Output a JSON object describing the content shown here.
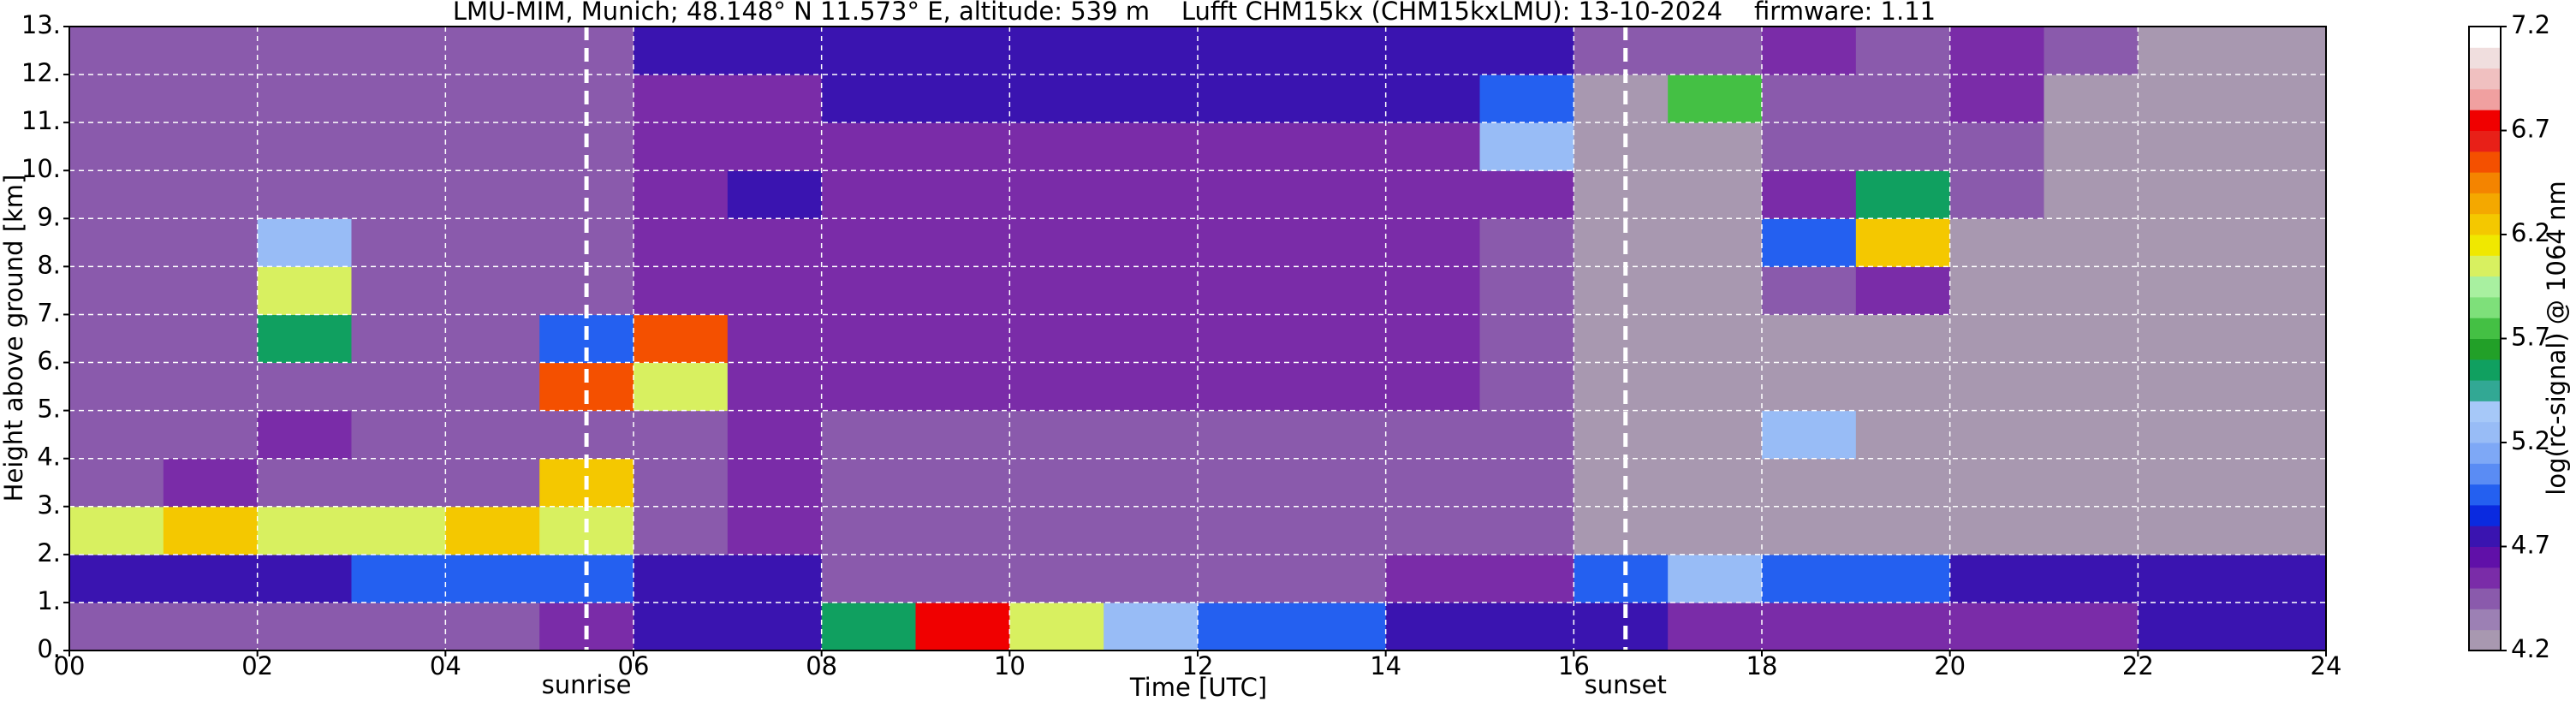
{
  "chart_data": {
    "type": "heatmap",
    "title": "LMU-MIM, Munich; 48.148° N 11.573° E, altitude: 539 m    Lufft CHM15kx (CHM15kxLMU): 13-10-2024    firmware: 1.11",
    "x_label": "Time [UTC]",
    "y_label": "Height above ground [km]",
    "xlim": [
      0,
      24
    ],
    "ylim": [
      0,
      13
    ],
    "xticks": [
      {
        "value": 0,
        "label": "00"
      },
      {
        "value": 2,
        "label": "02"
      },
      {
        "value": 4,
        "label": "04"
      },
      {
        "value": 6,
        "label": "06"
      },
      {
        "value": 8,
        "label": "08"
      },
      {
        "value": 10,
        "label": "10"
      },
      {
        "value": 12,
        "label": "12"
      },
      {
        "value": 14,
        "label": "14"
      },
      {
        "value": 16,
        "label": "16"
      },
      {
        "value": 18,
        "label": "18"
      },
      {
        "value": 20,
        "label": "20"
      },
      {
        "value": 22,
        "label": "22"
      },
      {
        "value": 24,
        "label": "24"
      }
    ],
    "yticks": [
      {
        "value": 0,
        "label": "0."
      },
      {
        "value": 1,
        "label": "1."
      },
      {
        "value": 2,
        "label": "2."
      },
      {
        "value": 3,
        "label": "3."
      },
      {
        "value": 4,
        "label": "4."
      },
      {
        "value": 5,
        "label": "5."
      },
      {
        "value": 6,
        "label": "6."
      },
      {
        "value": 7,
        "label": "7."
      },
      {
        "value": 8,
        "label": "8."
      },
      {
        "value": 9,
        "label": "9."
      },
      {
        "value": 10,
        "label": "10."
      },
      {
        "value": 11,
        "label": "11."
      },
      {
        "value": 12,
        "label": "12."
      },
      {
        "value": 13,
        "label": "13."
      }
    ],
    "grid": true,
    "z": [
      [
        4.5,
        4.5,
        4.5,
        4.5,
        4.5,
        4.6,
        4.7,
        4.8,
        5.6,
        6.8,
        6.0,
        5.2,
        5.0,
        4.9,
        4.8,
        4.7,
        4.7,
        4.6,
        4.6,
        4.6,
        4.6,
        4.6,
        4.7,
        4.7
      ],
      [
        4.8,
        4.8,
        4.8,
        4.9,
        5.0,
        4.9,
        4.7,
        4.8,
        4.5,
        4.4,
        4.4,
        4.5,
        4.5,
        4.5,
        4.6,
        4.6,
        5.0,
        5.2,
        5.0,
        4.9,
        4.8,
        4.7,
        4.7,
        4.7
      ],
      [
        6.0,
        6.2,
        6.0,
        6.0,
        6.2,
        6.0,
        4.5,
        4.6,
        4.4,
        4.4,
        4.4,
        4.4,
        4.4,
        4.4,
        4.4,
        4.4,
        4.3,
        4.3,
        4.3,
        4.3,
        4.3,
        4.3,
        4.3,
        4.3
      ],
      [
        4.4,
        4.6,
        4.4,
        4.5,
        4.5,
        6.2,
        4.5,
        4.6,
        4.5,
        4.5,
        4.5,
        4.5,
        4.5,
        4.5,
        4.5,
        4.5,
        4.3,
        4.3,
        4.3,
        4.3,
        4.3,
        4.3,
        4.3,
        4.3
      ],
      [
        4.4,
        4.4,
        4.6,
        4.4,
        4.4,
        4.4,
        4.5,
        4.6,
        4.5,
        4.5,
        4.5,
        4.5,
        4.5,
        4.5,
        4.5,
        4.5,
        4.3,
        4.3,
        5.2,
        4.3,
        4.3,
        4.3,
        4.3,
        4.3
      ],
      [
        4.4,
        4.4,
        4.4,
        4.4,
        4.4,
        6.5,
        6.0,
        4.6,
        4.6,
        4.6,
        4.6,
        4.6,
        4.6,
        4.6,
        4.6,
        4.5,
        4.3,
        4.3,
        4.3,
        4.3,
        4.3,
        4.3,
        4.3,
        4.3
      ],
      [
        4.4,
        4.4,
        5.6,
        4.4,
        4.4,
        5.0,
        6.5,
        4.6,
        4.6,
        4.6,
        4.6,
        4.6,
        4.6,
        4.6,
        4.6,
        4.5,
        4.3,
        4.3,
        4.3,
        4.3,
        4.3,
        4.3,
        4.3,
        4.3
      ],
      [
        4.4,
        4.4,
        6.0,
        4.4,
        4.4,
        4.4,
        4.6,
        4.6,
        4.6,
        4.6,
        4.6,
        4.6,
        4.6,
        4.6,
        4.6,
        4.5,
        4.3,
        4.3,
        4.5,
        4.6,
        4.3,
        4.3,
        4.3,
        4.3
      ],
      [
        4.4,
        4.4,
        5.2,
        4.4,
        4.4,
        4.4,
        4.6,
        4.6,
        4.6,
        4.6,
        4.6,
        4.6,
        4.6,
        4.6,
        4.6,
        4.5,
        4.3,
        4.3,
        5.0,
        6.2,
        4.3,
        4.3,
        4.3,
        4.3
      ],
      [
        4.4,
        4.4,
        4.4,
        4.4,
        4.4,
        4.4,
        4.6,
        4.8,
        4.6,
        4.6,
        4.6,
        4.6,
        4.6,
        4.6,
        4.6,
        4.6,
        4.3,
        4.3,
        4.6,
        5.6,
        4.4,
        4.3,
        4.3,
        4.3
      ],
      [
        4.4,
        4.4,
        4.4,
        4.4,
        4.4,
        4.4,
        4.6,
        4.6,
        4.6,
        4.6,
        4.6,
        4.6,
        4.6,
        4.6,
        4.6,
        5.2,
        4.3,
        4.3,
        4.4,
        4.5,
        4.4,
        4.3,
        4.3,
        4.3
      ],
      [
        4.4,
        4.4,
        4.4,
        4.4,
        4.4,
        4.4,
        4.6,
        4.6,
        4.7,
        4.7,
        4.7,
        4.7,
        4.7,
        4.7,
        4.7,
        5.0,
        4.3,
        5.8,
        4.5,
        4.4,
        4.6,
        4.3,
        4.3,
        4.3
      ],
      [
        4.4,
        4.4,
        4.4,
        4.4,
        4.4,
        4.4,
        4.7,
        4.7,
        4.7,
        4.7,
        4.7,
        4.7,
        4.7,
        4.7,
        4.7,
        4.7,
        4.4,
        4.4,
        4.6,
        4.4,
        4.6,
        4.4,
        4.3,
        4.3
      ]
    ],
    "annotations": [
      {
        "text": "sunrise",
        "x": 5.5
      },
      {
        "text": "sunset",
        "x": 16.55
      }
    ],
    "colorbar": {
      "label": "log(rc-signal) @ 1064 nm",
      "clim": [
        4.2,
        7.2
      ],
      "ticks": [
        4.2,
        4.7,
        5.2,
        5.7,
        6.2,
        6.7,
        7.2
      ],
      "colors": [
        "#a898b0",
        "#9c80b4",
        "#8a5aac",
        "#7a2ca8",
        "#6010a8",
        "#3a14b0",
        "#0a2ae0",
        "#2460f0",
        "#5a8cf4",
        "#7ea8f6",
        "#98bcf6",
        "#a6c8f8",
        "#32a894",
        "#10a060",
        "#22a028",
        "#44c044",
        "#7ee07a",
        "#a8f0a0",
        "#d8f060",
        "#f0e800",
        "#f4c800",
        "#f4a800",
        "#f48400",
        "#f45000",
        "#e82018",
        "#f00000",
        "#f0a0a0",
        "#f0c0c0",
        "#f0dede",
        "#ffffff"
      ]
    }
  }
}
